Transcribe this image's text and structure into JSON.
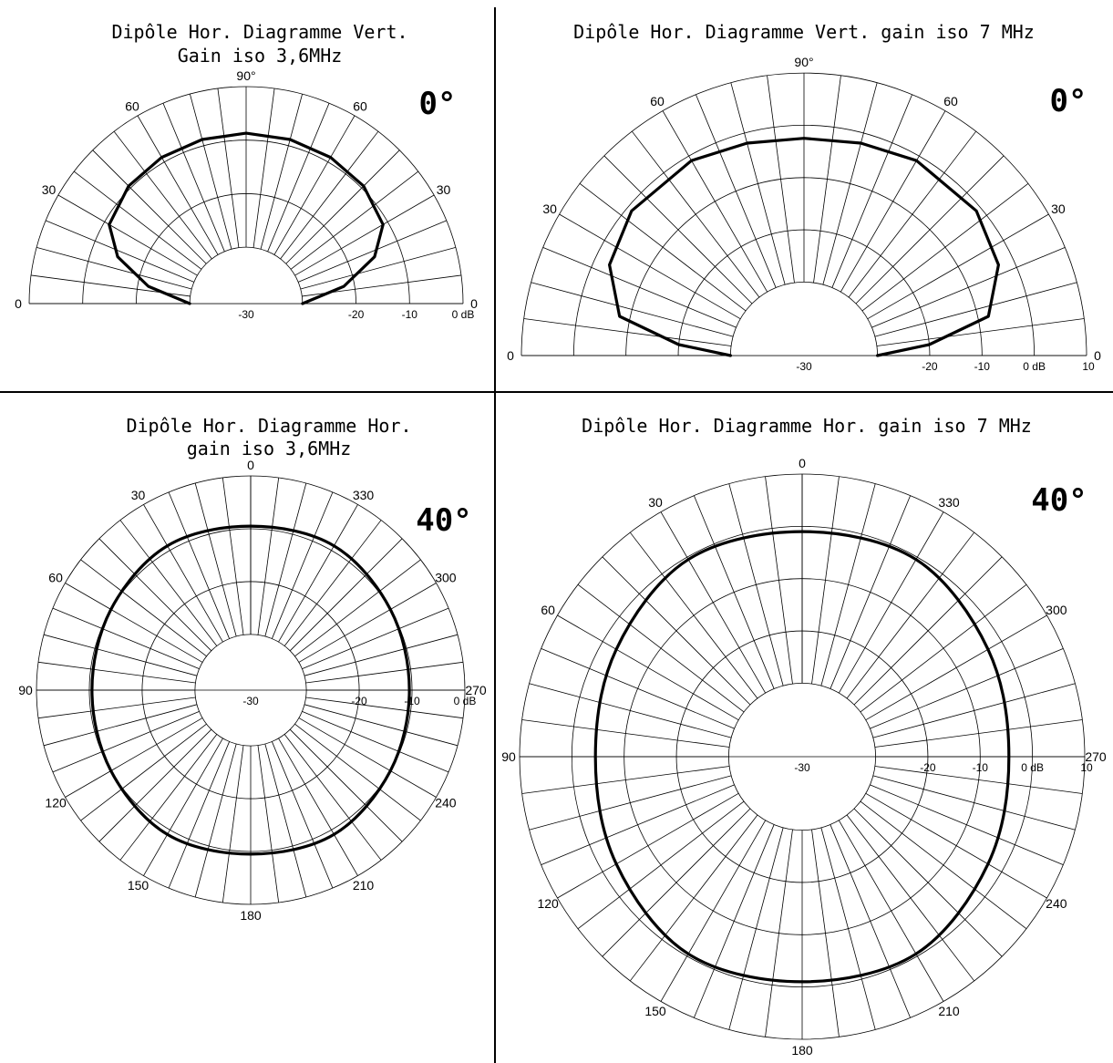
{
  "chart_data": [
    {
      "type": "polar",
      "view": "elevation",
      "title_lines": [
        "Dipôle Hor. Diagramme Vert.",
        "Gain iso 3,6MHz"
      ],
      "elevation_label": "0°",
      "angle_labels": [
        {
          "angle": 0,
          "text": "0"
        },
        {
          "angle": 30,
          "text": "30"
        },
        {
          "angle": 60,
          "text": "60"
        },
        {
          "angle": 90,
          "text": "90°"
        },
        {
          "angle": 120,
          "text": "60"
        },
        {
          "angle": 150,
          "text": "30"
        },
        {
          "angle": 180,
          "text": "0"
        }
      ],
      "ring_labels": [
        "-30",
        "-20",
        "-10",
        "0 dB"
      ],
      "ring_end_label": "",
      "r_range_db": [
        -30,
        0
      ],
      "curve": [
        {
          "angle": 0,
          "db": -30
        },
        {
          "angle": 10,
          "db": -22
        },
        {
          "angle": 20,
          "db": -15
        },
        {
          "angle": 30,
          "db": -11
        },
        {
          "angle": 45,
          "db": -9.5
        },
        {
          "angle": 60,
          "db": -9
        },
        {
          "angle": 75,
          "db": -8.8
        },
        {
          "angle": 90,
          "db": -8.7
        },
        {
          "angle": 105,
          "db": -8.8
        },
        {
          "angle": 120,
          "db": -9
        },
        {
          "angle": 135,
          "db": -9.5
        },
        {
          "angle": 150,
          "db": -11
        },
        {
          "angle": 160,
          "db": -15
        },
        {
          "angle": 170,
          "db": -22
        },
        {
          "angle": 180,
          "db": -30
        }
      ]
    },
    {
      "type": "polar",
      "view": "elevation",
      "title_lines": [
        "Dipôle Hor. Diagramme Vert. gain iso 7 MHz"
      ],
      "elevation_label": "0°",
      "angle_labels": [
        {
          "angle": 0,
          "text": "0"
        },
        {
          "angle": 30,
          "text": "30"
        },
        {
          "angle": 60,
          "text": "60"
        },
        {
          "angle": 90,
          "text": "90°"
        },
        {
          "angle": 120,
          "text": "60"
        },
        {
          "angle": 150,
          "text": "30"
        },
        {
          "angle": 180,
          "text": "0"
        }
      ],
      "ring_labels": [
        "-30",
        "-20",
        "-10",
        "0 dB"
      ],
      "ring_end_label": "10",
      "r_range_db": [
        -30,
        10
      ],
      "curve": [
        {
          "angle": 0,
          "db": -30
        },
        {
          "angle": 5,
          "db": -20
        },
        {
          "angle": 12,
          "db": -8
        },
        {
          "angle": 25,
          "db": -3
        },
        {
          "angle": 40,
          "db": -1
        },
        {
          "angle": 60,
          "db": -1
        },
        {
          "angle": 75,
          "db": -2
        },
        {
          "angle": 90,
          "db": -2.5
        },
        {
          "angle": 105,
          "db": -2
        },
        {
          "angle": 120,
          "db": -1
        },
        {
          "angle": 140,
          "db": -1
        },
        {
          "angle": 155,
          "db": -3
        },
        {
          "angle": 168,
          "db": -8
        },
        {
          "angle": 175,
          "db": -20
        },
        {
          "angle": 180,
          "db": -30
        }
      ]
    },
    {
      "type": "polar",
      "view": "azimuth",
      "title_lines": [
        "Dipôle Hor. Diagramme Hor.",
        "gain iso 3,6MHz"
      ],
      "elevation_label": "40°",
      "angle_labels": [
        {
          "angle": 0,
          "text": "0"
        },
        {
          "angle": 30,
          "text": "30"
        },
        {
          "angle": 60,
          "text": "60"
        },
        {
          "angle": 90,
          "text": "90"
        },
        {
          "angle": 120,
          "text": "120"
        },
        {
          "angle": 150,
          "text": "150"
        },
        {
          "angle": 180,
          "text": "180"
        },
        {
          "angle": 210,
          "text": "210"
        },
        {
          "angle": 240,
          "text": "240"
        },
        {
          "angle": 270,
          "text": "270"
        },
        {
          "angle": 300,
          "text": "300"
        },
        {
          "angle": 330,
          "text": "330"
        }
      ],
      "ring_labels": [
        "-30",
        "-20",
        "-10",
        "0 dB"
      ],
      "ring_end_label": "",
      "r_range_db": [
        -30,
        0
      ],
      "curve": [
        {
          "angle": 0,
          "db": -9.5
        },
        {
          "angle": 30,
          "db": -9
        },
        {
          "angle": 60,
          "db": -10
        },
        {
          "angle": 90,
          "db": -10.5
        },
        {
          "angle": 120,
          "db": -10
        },
        {
          "angle": 150,
          "db": -9
        },
        {
          "angle": 180,
          "db": -9.5
        },
        {
          "angle": 210,
          "db": -9
        },
        {
          "angle": 240,
          "db": -10
        },
        {
          "angle": 270,
          "db": -10.5
        },
        {
          "angle": 300,
          "db": -10
        },
        {
          "angle": 330,
          "db": -9
        }
      ]
    },
    {
      "type": "polar",
      "view": "azimuth",
      "title_lines": [
        "Dipôle Hor. Diagramme Hor. gain iso 7 MHz"
      ],
      "elevation_label": "40°",
      "angle_labels": [
        {
          "angle": 0,
          "text": "0"
        },
        {
          "angle": 30,
          "text": "30"
        },
        {
          "angle": 60,
          "text": "60"
        },
        {
          "angle": 90,
          "text": "90"
        },
        {
          "angle": 120,
          "text": "120"
        },
        {
          "angle": 150,
          "text": "150"
        },
        {
          "angle": 180,
          "text": "180"
        },
        {
          "angle": 210,
          "text": "210"
        },
        {
          "angle": 240,
          "text": "240"
        },
        {
          "angle": 270,
          "text": "270"
        },
        {
          "angle": 300,
          "text": "300"
        },
        {
          "angle": 330,
          "text": "330"
        }
      ],
      "ring_labels": [
        "-30",
        "-20",
        "-10",
        "0 dB"
      ],
      "ring_end_label": "10",
      "r_range_db": [
        -30,
        10
      ],
      "curve": [
        {
          "angle": 0,
          "db": -1
        },
        {
          "angle": 30,
          "db": -0.5
        },
        {
          "angle": 60,
          "db": -3
        },
        {
          "angle": 90,
          "db": -4.5
        },
        {
          "angle": 120,
          "db": -3
        },
        {
          "angle": 150,
          "db": -0.5
        },
        {
          "angle": 180,
          "db": -1
        },
        {
          "angle": 210,
          "db": -0.5
        },
        {
          "angle": 240,
          "db": -3
        },
        {
          "angle": 270,
          "db": -4.5
        },
        {
          "angle": 300,
          "db": -3
        },
        {
          "angle": 330,
          "db": -0.5
        }
      ]
    }
  ]
}
